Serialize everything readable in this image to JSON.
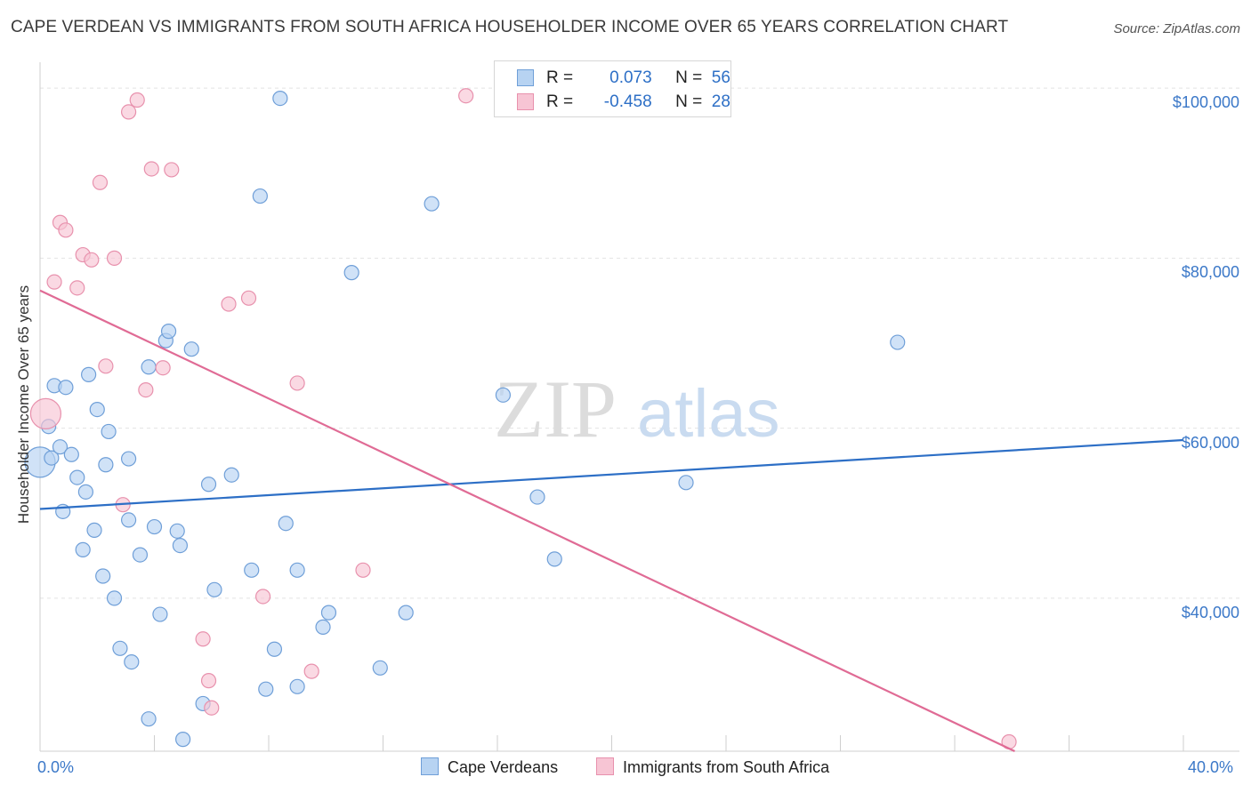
{
  "title": "CAPE VERDEAN VS IMMIGRANTS FROM SOUTH AFRICA HOUSEHOLDER INCOME OVER 65 YEARS CORRELATION CHART",
  "source": "Source: ZipAtlas.com",
  "watermark": "ZIPatlas",
  "colors": {
    "blue_fill": "#b7d3f2",
    "blue_stroke": "#6f9fd8",
    "blue_line": "#2d6fc6",
    "pink_fill": "#f7c5d4",
    "pink_stroke": "#e891ad",
    "pink_line": "#e06b95"
  },
  "legend_top": {
    "rows": [
      {
        "r_label": "R =",
        "r_value": "0.073",
        "n_label": "N =",
        "n_value": "56"
      },
      {
        "r_label": "R =",
        "r_value": "-0.458",
        "n_label": "N =",
        "n_value": "28"
      }
    ]
  },
  "legend_bottom": {
    "series1": "Cape Verdeans",
    "series2": "Immigrants from South Africa"
  },
  "chart_data": {
    "type": "scatter",
    "title": "CAPE VERDEAN VS IMMIGRANTS FROM SOUTH AFRICA HOUSEHOLDER INCOME OVER 65 YEARS CORRELATION CHART",
    "xlabel": "",
    "ylabel": "Householder Income Over 65 years",
    "xlim": [
      0,
      40
    ],
    "ylim": [
      22000,
      102000
    ],
    "x_tick_labels": [
      "0.0%",
      "40.0%"
    ],
    "y_ticks": [
      40000,
      60000,
      80000,
      100000
    ],
    "y_tick_labels": [
      "$40,000",
      "$60,000",
      "$80,000",
      "$100,000"
    ],
    "grid": true,
    "legend": "bottom",
    "series": [
      {
        "name": "Cape Verdeans",
        "trend": {
          "x0": 0,
          "y0": 50500,
          "x1": 40,
          "y1": 58600
        },
        "points": [
          [
            0.0,
            56000
          ],
          [
            0.3,
            60200
          ],
          [
            0.4,
            56500
          ],
          [
            0.5,
            65000
          ],
          [
            0.7,
            57800
          ],
          [
            0.8,
            50200
          ],
          [
            0.9,
            64800
          ],
          [
            1.1,
            56900
          ],
          [
            1.3,
            54200
          ],
          [
            1.5,
            45700
          ],
          [
            1.6,
            52500
          ],
          [
            1.7,
            66300
          ],
          [
            1.9,
            48000
          ],
          [
            2.0,
            62200
          ],
          [
            2.2,
            42600
          ],
          [
            2.3,
            55700
          ],
          [
            2.4,
            59600
          ],
          [
            2.6,
            40000
          ],
          [
            2.8,
            34100
          ],
          [
            3.1,
            49200
          ],
          [
            3.2,
            32500
          ],
          [
            3.1,
            56400
          ],
          [
            3.5,
            45100
          ],
          [
            3.8,
            25800
          ],
          [
            3.8,
            67200
          ],
          [
            4.0,
            48400
          ],
          [
            4.2,
            38100
          ],
          [
            4.4,
            70300
          ],
          [
            4.5,
            71400
          ],
          [
            4.8,
            47900
          ],
          [
            4.9,
            46200
          ],
          [
            5.0,
            23400
          ],
          [
            5.3,
            69300
          ],
          [
            5.7,
            27600
          ],
          [
            5.9,
            53400
          ],
          [
            6.1,
            41000
          ],
          [
            6.7,
            54500
          ],
          [
            7.4,
            43300
          ],
          [
            7.7,
            87300
          ],
          [
            7.9,
            29300
          ],
          [
            8.2,
            34000
          ],
          [
            8.4,
            98800
          ],
          [
            8.6,
            48800
          ],
          [
            9.0,
            43300
          ],
          [
            9.0,
            29600
          ],
          [
            9.9,
            36600
          ],
          [
            10.1,
            38300
          ],
          [
            10.9,
            78300
          ],
          [
            11.9,
            31800
          ],
          [
            12.8,
            38300
          ],
          [
            13.7,
            86400
          ],
          [
            16.2,
            63900
          ],
          [
            17.4,
            51900
          ],
          [
            18.0,
            44600
          ],
          [
            22.6,
            53600
          ],
          [
            30.0,
            70100
          ]
        ]
      },
      {
        "name": "Immigrants from South Africa",
        "trend": {
          "x0": 0,
          "y0": 76200,
          "x1": 34.1,
          "y1": 22000
        },
        "points": [
          [
            0.2,
            61700
          ],
          [
            0.5,
            77200
          ],
          [
            0.7,
            84200
          ],
          [
            0.9,
            83300
          ],
          [
            1.3,
            76500
          ],
          [
            1.5,
            80400
          ],
          [
            1.8,
            79800
          ],
          [
            2.1,
            88900
          ],
          [
            2.3,
            67300
          ],
          [
            2.6,
            80000
          ],
          [
            2.9,
            51000
          ],
          [
            3.1,
            97200
          ],
          [
            3.4,
            98600
          ],
          [
            3.7,
            64500
          ],
          [
            3.9,
            90500
          ],
          [
            4.3,
            67100
          ],
          [
            4.6,
            90400
          ],
          [
            5.7,
            35200
          ],
          [
            5.9,
            30300
          ],
          [
            6.0,
            27100
          ],
          [
            6.6,
            74600
          ],
          [
            7.3,
            75300
          ],
          [
            7.8,
            40200
          ],
          [
            9.0,
            65300
          ],
          [
            9.5,
            31400
          ],
          [
            11.3,
            43300
          ],
          [
            14.9,
            99100
          ],
          [
            33.9,
            23100
          ]
        ]
      }
    ]
  }
}
